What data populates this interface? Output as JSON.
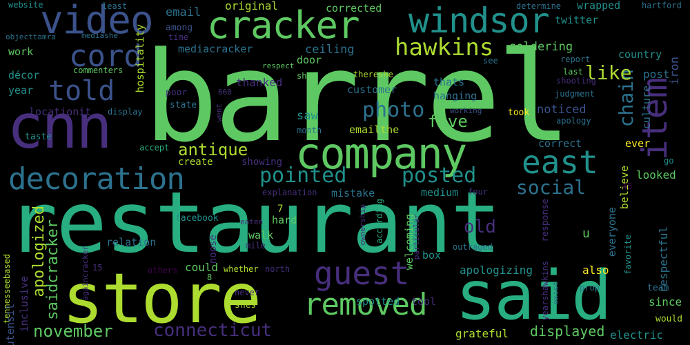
{
  "palette": {
    "background": "#000000",
    "colors": [
      "#440154",
      "#472f7d",
      "#3b528b",
      "#2c728e",
      "#21918c",
      "#28ae80",
      "#5ec962",
      "#addc30",
      "#fde725"
    ]
  },
  "words": [
    {
      "text": "barrel",
      "color": "#5ec962"
    },
    {
      "text": "restaurant",
      "color": "#28ae80"
    },
    {
      "text": "store",
      "color": "#addc30"
    },
    {
      "text": "said",
      "color": "#28ae80"
    },
    {
      "text": "cnn",
      "color": "#472f7d"
    },
    {
      "text": "company",
      "color": "#5ec962"
    },
    {
      "text": "cracker",
      "color": "#5ec962"
    },
    {
      "text": "video",
      "color": "#3b528b"
    },
    {
      "text": "windsor",
      "color": "#21918c"
    },
    {
      "text": "cord",
      "color": "#3b528b"
    },
    {
      "text": "told",
      "color": "#3b528b"
    },
    {
      "text": "hawkins",
      "color": "#addc30"
    },
    {
      "text": "decoration",
      "color": "#2c728e"
    },
    {
      "text": "east",
      "color": "#21918c"
    },
    {
      "text": "item",
      "color": "#472f7d"
    },
    {
      "text": "guest",
      "color": "#472f7d"
    },
    {
      "text": "removed",
      "color": "#5ec962"
    },
    {
      "text": "pointed",
      "color": "#21918c"
    },
    {
      "text": "posted",
      "color": "#21918c"
    },
    {
      "text": "photo",
      "color": "#2c728e"
    },
    {
      "text": "antique",
      "color": "#addc30"
    },
    {
      "text": "november",
      "color": "#5ec962"
    },
    {
      "text": "connecticut",
      "color": "#472f7d"
    },
    {
      "text": "social",
      "color": "#2c728e"
    },
    {
      "text": "chain",
      "color": "#2c728e"
    },
    {
      "text": "like",
      "color": "#addc30"
    },
    {
      "text": "five",
      "color": "#5ec962"
    },
    {
      "text": "old",
      "color": "#472f7d"
    },
    {
      "text": "apologized",
      "color": "#addc30"
    },
    {
      "text": "saidcracker",
      "color": "#5ec962"
    },
    {
      "text": "email",
      "color": "#2c728e"
    },
    {
      "text": "original",
      "color": "#addc30"
    },
    {
      "text": "corrected",
      "color": "#5ec962"
    },
    {
      "text": "soldering",
      "color": "#5ec962"
    },
    {
      "text": "hospitality",
      "color": "#addc30"
    },
    {
      "text": "ceiling",
      "color": "#2c728e"
    },
    {
      "text": "mediacracker",
      "color": "#2c728e"
    },
    {
      "text": "door",
      "color": "#5ec962"
    },
    {
      "text": "work",
      "color": "#5ec962"
    },
    {
      "text": "décor",
      "color": "#21918c"
    },
    {
      "text": "year",
      "color": "#21918c"
    },
    {
      "text": "thanked",
      "color": "#472f7d"
    },
    {
      "text": "customer",
      "color": "#2c728e"
    },
    {
      "text": "thats",
      "color": "#2c728e"
    },
    {
      "text": "hanging",
      "color": "#2c728e"
    },
    {
      "text": "noticed",
      "color": "#3b528b"
    },
    {
      "text": "emailthe",
      "color": "#addc30"
    },
    {
      "text": "saw",
      "color": "#21918c"
    },
    {
      "text": "culture",
      "color": "#2c728e"
    },
    {
      "text": "post",
      "color": "#2c728e"
    },
    {
      "text": "country",
      "color": "#21918c"
    },
    {
      "text": "iron",
      "color": "#3b528b"
    },
    {
      "text": "wrapped",
      "color": "#21918c"
    },
    {
      "text": "twitter",
      "color": "#21918c"
    },
    {
      "text": "hartford",
      "color": "#2c728e"
    },
    {
      "text": "determine",
      "color": "#2c728e"
    },
    {
      "text": "website",
      "color": "#21918c"
    },
    {
      "text": "least",
      "color": "#2c728e"
    },
    {
      "text": "objecttamra",
      "color": "#2c728e"
    },
    {
      "text": "mediashe",
      "color": "#2c728e"
    },
    {
      "text": "among",
      "color": "#3b528b"
    },
    {
      "text": "time",
      "color": "#472f7d"
    },
    {
      "text": "respect",
      "color": "#5ec962"
    },
    {
      "text": "commenters",
      "color": "#5ec962"
    },
    {
      "text": "shed",
      "color": "#5ec962"
    },
    {
      "text": "thereshe",
      "color": "#addc30"
    },
    {
      "text": "see",
      "color": "#2c728e"
    },
    {
      "text": "report",
      "color": "#2c728e"
    },
    {
      "text": "last",
      "color": "#5ec962"
    },
    {
      "text": "shooting",
      "color": "#472f7d"
    },
    {
      "text": "judgment",
      "color": "#2c728e"
    },
    {
      "text": "apology",
      "color": "#2c728e"
    },
    {
      "text": "took",
      "color": "#fde725"
    },
    {
      "text": "working",
      "color": "#3b528b"
    },
    {
      "text": "month",
      "color": "#2c728e"
    },
    {
      "text": "poor",
      "color": "#472f7d"
    },
    {
      "text": "state",
      "color": "#2c728e"
    },
    {
      "text": "display",
      "color": "#2c728e"
    },
    {
      "text": "locationit",
      "color": "#472f7d"
    },
    {
      "text": "went",
      "color": "#472f7d"
    },
    {
      "text": "660",
      "color": "#472f7d"
    },
    {
      "text": "taste",
      "color": "#21918c"
    },
    {
      "text": "accept",
      "color": "#28ae80"
    },
    {
      "text": "create",
      "color": "#addc30"
    },
    {
      "text": "showing",
      "color": "#472f7d"
    },
    {
      "text": "correct",
      "color": "#2c728e"
    },
    {
      "text": "ever",
      "color": "#fde725"
    },
    {
      "text": "go",
      "color": "#21918c"
    },
    {
      "text": "believe",
      "color": "#addc30"
    },
    {
      "text": "looked",
      "color": "#5ec962"
    },
    {
      "text": "explanation",
      "color": "#472f7d"
    },
    {
      "text": "mistake",
      "color": "#2c728e"
    },
    {
      "text": "medium",
      "color": "#21918c"
    },
    {
      "text": "four",
      "color": "#472f7d"
    },
    {
      "text": "45",
      "color": "#440154"
    },
    {
      "text": "facebook",
      "color": "#21918c"
    },
    {
      "text": "7",
      "color": "#addc30"
    },
    {
      "text": "hard",
      "color": "#5ec962"
    },
    {
      "text": "eaten",
      "color": "#472f7d"
    },
    {
      "text": "ownership",
      "color": "#472f7d"
    },
    {
      "text": "according",
      "color": "#28ae80"
    },
    {
      "text": "everyone",
      "color": "#2c728e"
    },
    {
      "text": "response",
      "color": "#472f7d"
    },
    {
      "text": "welcoming",
      "color": "#5ec962"
    },
    {
      "text": "particular",
      "color": "#472f7d"
    },
    {
      "text": "noose",
      "color": "#472f7d"
    },
    {
      "text": "walk",
      "color": "#5ec962"
    },
    {
      "text": "relation",
      "color": "#2c728e"
    },
    {
      "text": "mile",
      "color": "#472f7d"
    },
    {
      "text": "u",
      "color": "#5ec962"
    },
    {
      "text": "favorite",
      "color": "#21918c"
    },
    {
      "text": "respectful",
      "color": "#2c728e"
    },
    {
      "text": "outraged",
      "color": "#2c728e"
    },
    {
      "text": "box",
      "color": "#21918c"
    },
    {
      "text": "tennesseebased",
      "color": "#addc30"
    },
    {
      "text": "againcracker",
      "color": "#472f7d"
    },
    {
      "text": "utensil",
      "color": "#3b528b"
    },
    {
      "text": "inclusive",
      "color": "#472f7d"
    },
    {
      "text": "could",
      "color": "#5ec962"
    },
    {
      "text": "apologizing",
      "color": "#21918c"
    },
    {
      "text": "also",
      "color": "#fde725"
    },
    {
      "text": "15",
      "color": "#472f7d"
    },
    {
      "text": "others",
      "color": "#440154"
    },
    {
      "text": "whether",
      "color": "#addc30"
    },
    {
      "text": "north",
      "color": "#472f7d"
    },
    {
      "text": "8",
      "color": "#5ec962"
    },
    {
      "text": "never",
      "color": "#472f7d"
    },
    {
      "text": "shes",
      "color": "#addc30"
    },
    {
      "text": "yearshawkins",
      "color": "#472f7d"
    },
    {
      "text": "exist",
      "color": "#2c728e"
    },
    {
      "text": "prop",
      "color": "#2c728e"
    },
    {
      "text": "team",
      "color": "#2c728e"
    },
    {
      "text": "since",
      "color": "#5ec962"
    },
    {
      "text": "would",
      "color": "#addc30"
    },
    {
      "text": "spotted",
      "color": "#21918c"
    },
    {
      "text": "tool",
      "color": "#472f7d"
    },
    {
      "text": "grateful",
      "color": "#addc30"
    },
    {
      "text": "displayed",
      "color": "#5ec962"
    },
    {
      "text": "electric",
      "color": "#21918c"
    }
  ]
}
